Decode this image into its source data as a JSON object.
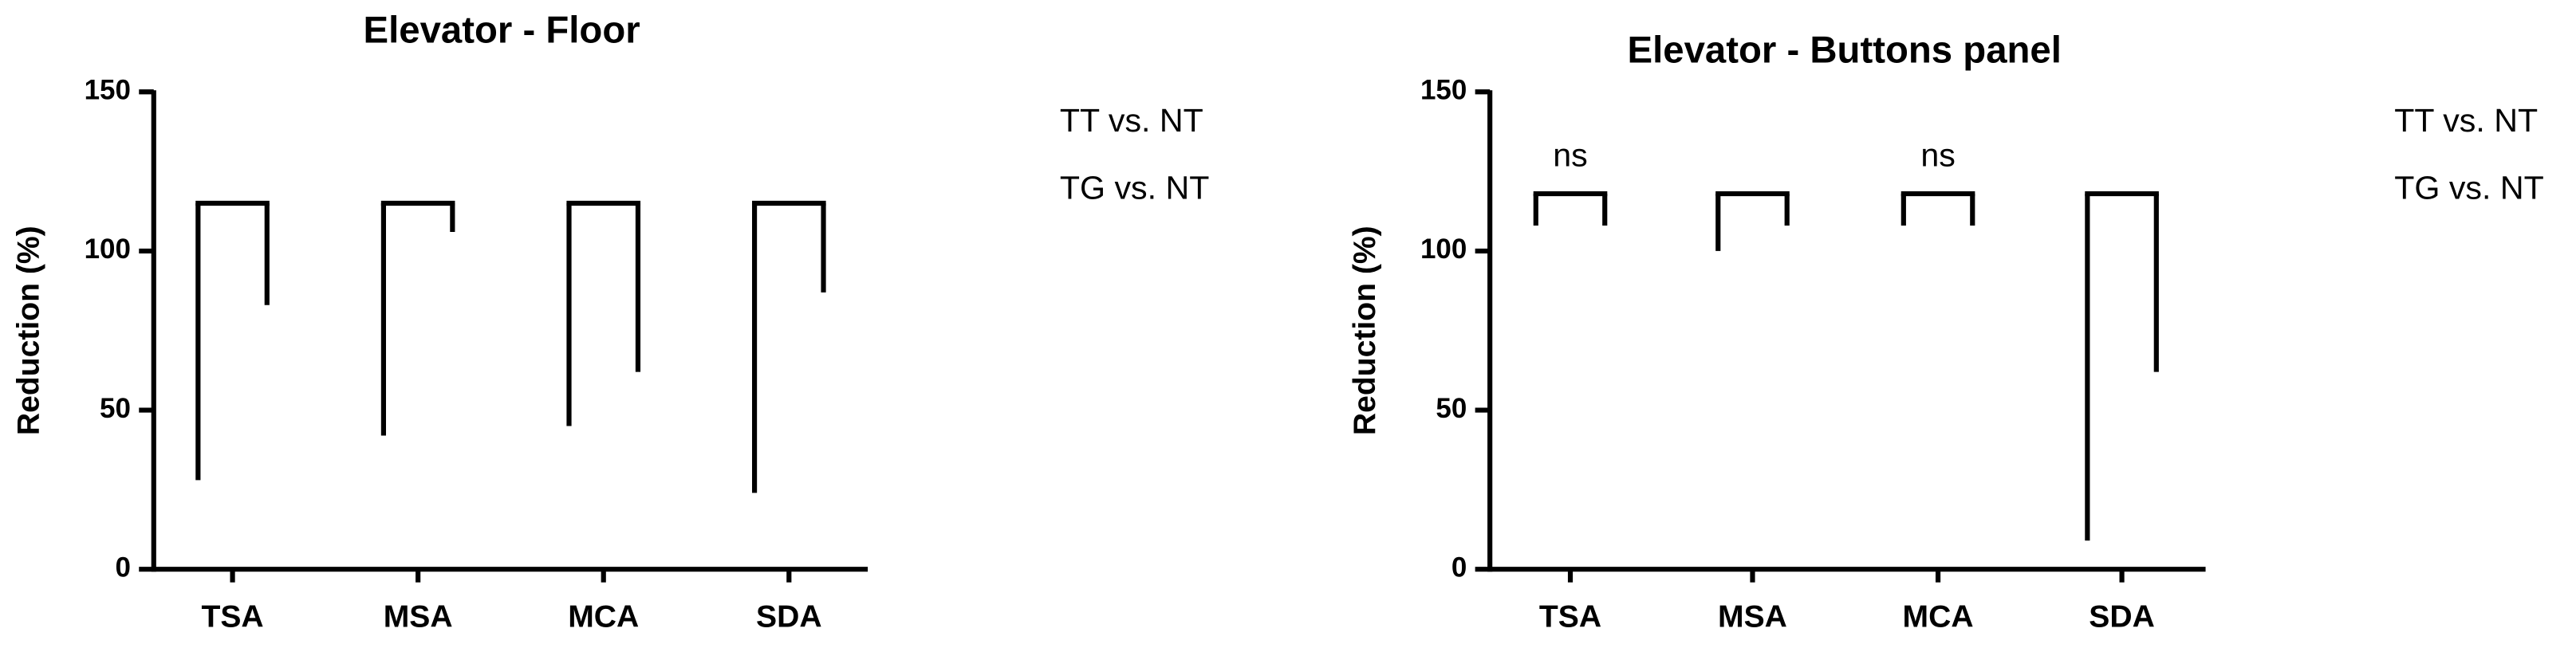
{
  "chart_data": [
    {
      "type": "bracket",
      "title": "Elevator - Floor",
      "y_label": "Reduction (%)",
      "categories": [
        "TSA",
        "MSA",
        "MCA",
        "SDA"
      ],
      "series": [
        {
          "name": "TT vs. NT",
          "values": [
            28,
            42,
            45,
            24
          ]
        },
        {
          "name": "TG vs. NT",
          "values": [
            83,
            106,
            62,
            87
          ]
        }
      ],
      "bracket_top": 115,
      "ylim": [
        0,
        150
      ],
      "yticks": [
        0,
        50,
        100,
        150
      ]
    },
    {
      "type": "bracket",
      "title": "Elevator - Buttons panel",
      "y_label": "Reduction (%)",
      "categories": [
        "TSA",
        "MSA",
        "MCA",
        "SDA"
      ],
      "series": [
        {
          "name": "TT vs. NT",
          "values": [
            108,
            100,
            108,
            9
          ]
        },
        {
          "name": "TG vs. NT",
          "values": [
            108,
            108,
            108,
            62
          ]
        }
      ],
      "labels": [
        "ns",
        null,
        "ns",
        null
      ],
      "bracket_top": 118,
      "ylim": [
        0,
        150
      ],
      "yticks": [
        0,
        50,
        100,
        150
      ]
    }
  ]
}
